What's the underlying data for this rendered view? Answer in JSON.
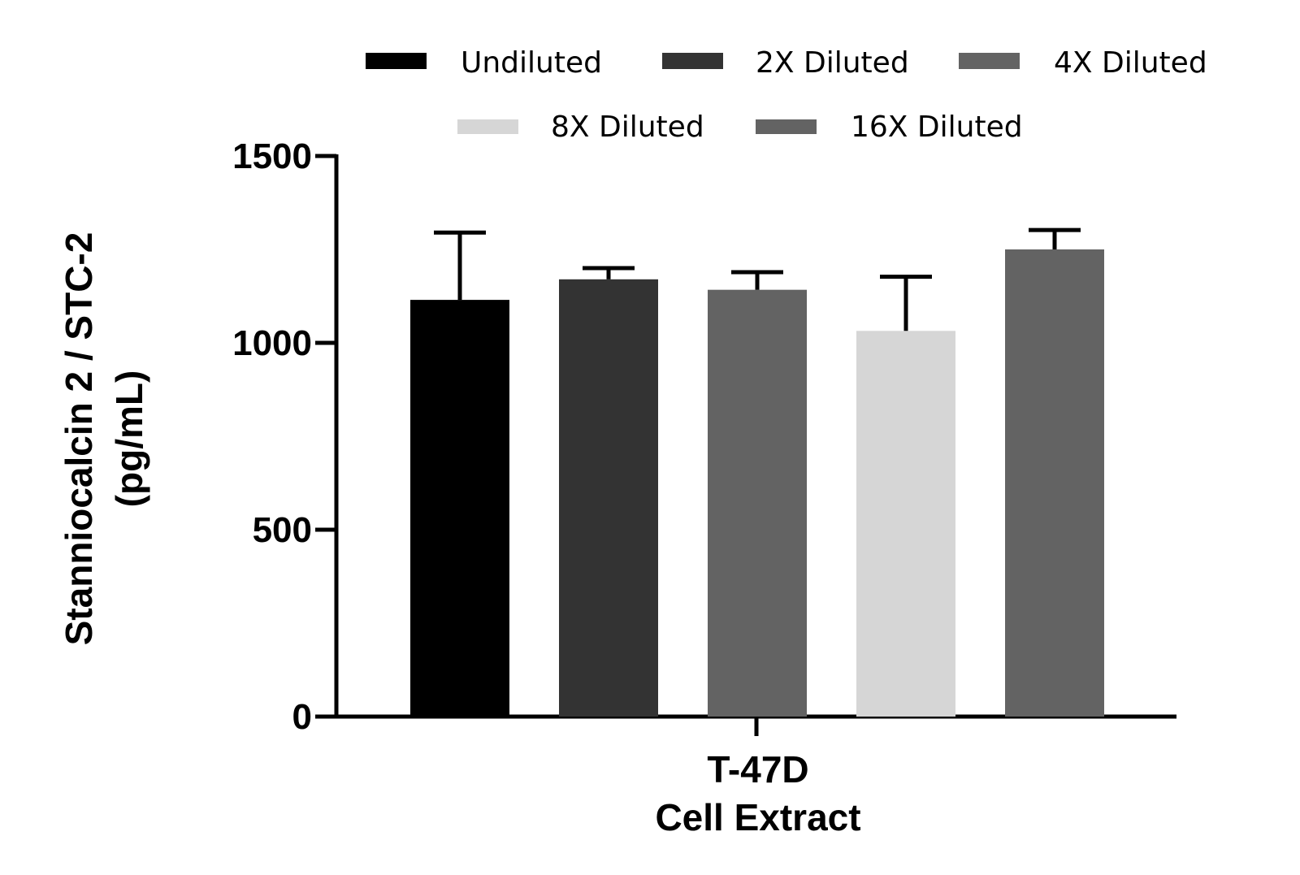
{
  "chart_data": {
    "type": "bar",
    "title": "",
    "ylabel_lines": [
      "Stanniocalcin 2 / STC-2",
      "(pg/mL)"
    ],
    "xlabel_lines": [
      "T-47D",
      "Cell Extract"
    ],
    "ylim": [
      0,
      1500
    ],
    "yticks": [
      0,
      500,
      1000,
      1500
    ],
    "tick_labels": [
      "0",
      "500",
      "1000",
      "1500"
    ],
    "grid": false,
    "legend_position": "top",
    "series": [
      {
        "name": "Undiluted",
        "value": 1115,
        "error": 180,
        "color": "#000000"
      },
      {
        "name": "2X Diluted",
        "value": 1170,
        "error": 30,
        "color": "#333333"
      },
      {
        "name": "4X Diluted",
        "value": 1142,
        "error": 47,
        "color": "#636363"
      },
      {
        "name": "8X Diluted",
        "value": 1032,
        "error": 145,
        "color": "#d6d6d6"
      },
      {
        "name": "16X Diluted",
        "value": 1250,
        "error": 52,
        "color": "#636363"
      }
    ]
  }
}
